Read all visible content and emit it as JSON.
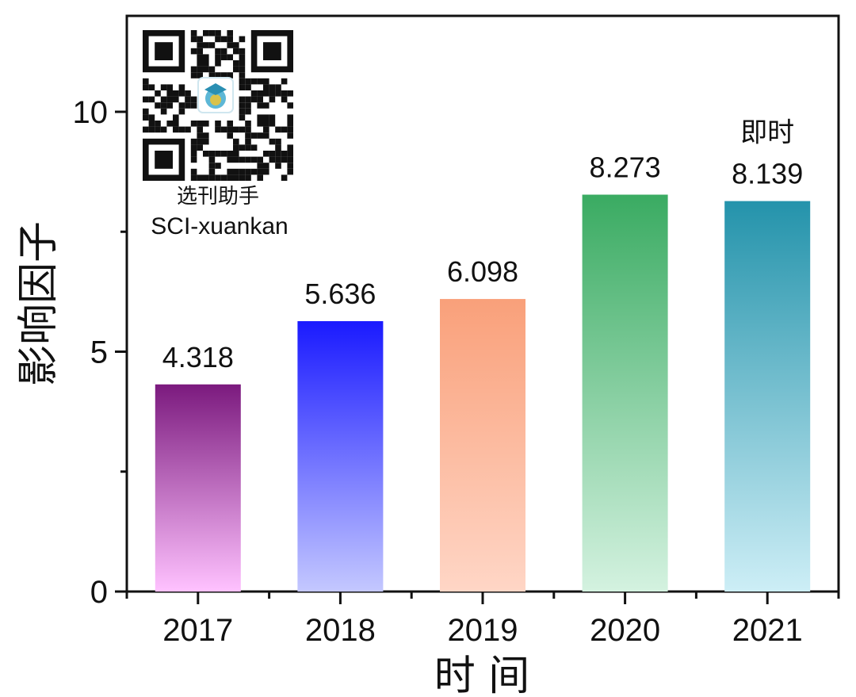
{
  "chart_data": {
    "type": "bar",
    "title": "",
    "xlabel": "时 间",
    "ylabel": "影响因子",
    "categories": [
      "2017",
      "2018",
      "2019",
      "2020",
      "2021"
    ],
    "series": [
      {
        "values": [
          4.318,
          5.636,
          6.098,
          8.273,
          8.139
        ]
      }
    ],
    "data_labels": [
      "4.318",
      "5.636",
      "6.098",
      "8.273",
      "8.139"
    ],
    "ylim": [
      0,
      12
    ],
    "yticks": [
      0,
      5,
      10
    ],
    "y_tick_labels": [
      "0",
      "5",
      "10"
    ],
    "grid": false,
    "bar_colors": [
      {
        "top": "#7b1a7e",
        "bottom": "#ffc2ff"
      },
      {
        "top": "#1a1aff",
        "bottom": "#c4c8ff"
      },
      {
        "top": "#f9a07a",
        "bottom": "#ffd6c6"
      },
      {
        "top": "#3aab62",
        "bottom": "#d4f2e0"
      },
      {
        "top": "#2493ab",
        "bottom": "#cdeef6"
      }
    ],
    "annotation": "即时",
    "annotation_category": "2021"
  },
  "watermark": {
    "qr_code": "qr-code-icon",
    "logo": "graduation-cap-logo-icon",
    "cn_text": "选刊助手",
    "en_text": "SCI-xuankan"
  }
}
